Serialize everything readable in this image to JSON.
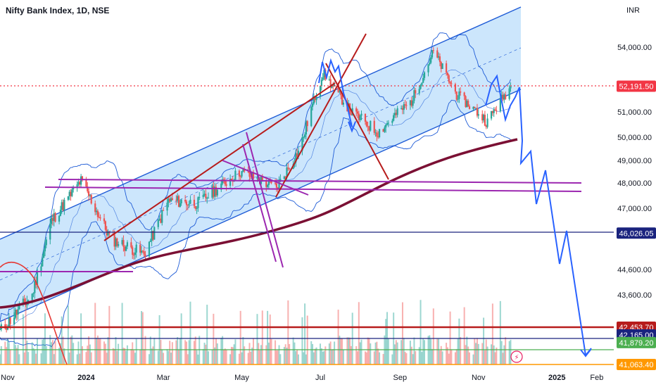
{
  "header": {
    "title": "Nifty Bank Index, 1D, NSE",
    "currency": "INR"
  },
  "colors": {
    "up": "#26a69a",
    "down": "#ef5350",
    "channel_fill": "#bbdefb",
    "channel_line": "#1e5bd6",
    "ma": "#7b1034",
    "purple": "#9c27b0",
    "crimson": "#b71c1c",
    "navy": "#1a237e",
    "forecast": "#2962ff",
    "price_line": "#f23645",
    "green_line": "#4caf50",
    "orange_line": "#ff9800"
  },
  "chart_data": {
    "type": "candlestick",
    "title": "Nifty Bank Index, 1D, NSE",
    "ylabel": "INR",
    "ylim": [
      41000,
      55200
    ],
    "grid": false,
    "x_tick_labels": [
      "Nov",
      "2024",
      "Mar",
      "May",
      "Jul",
      "Sep",
      "Nov",
      "2025",
      "Feb"
    ],
    "y_tick_labels": [
      "54,000.00",
      "51,000.00",
      "50,000.00",
      "49,000.00",
      "48,000.00",
      "47,000.00",
      "44,600.00",
      "43,600.00"
    ],
    "last_price": "52,191.50",
    "price_badges": [
      {
        "label": "52,191.50",
        "color": "#f23645"
      },
      {
        "label": "46,026.05",
        "color": "#1a237e"
      },
      {
        "label": "42,453.70",
        "color": "#b71c1c"
      },
      {
        "label": "42,165.00",
        "color": "#1a237e"
      },
      {
        "label": "41,879.20",
        "color": "#4caf50"
      },
      {
        "label": "41,063.40",
        "color": "#ff9800"
      }
    ],
    "price_path_approx": [
      {
        "date": "2023-10-26",
        "close": 42300
      },
      {
        "date": "2023-11-20",
        "close": 43600
      },
      {
        "date": "2023-12-05",
        "close": 46500
      },
      {
        "date": "2023-12-28",
        "close": 48100
      },
      {
        "date": "2024-01-20",
        "close": 45800
      },
      {
        "date": "2024-02-15",
        "close": 45200
      },
      {
        "date": "2024-03-05",
        "close": 47300
      },
      {
        "date": "2024-03-28",
        "close": 47200
      },
      {
        "date": "2024-04-30",
        "close": 48500
      },
      {
        "date": "2024-05-28",
        "close": 47800
      },
      {
        "date": "2024-06-15",
        "close": 49500
      },
      {
        "date": "2024-07-03",
        "close": 52800
      },
      {
        "date": "2024-07-25",
        "close": 51000
      },
      {
        "date": "2024-08-15",
        "close": 50200
      },
      {
        "date": "2024-09-10",
        "close": 51500
      },
      {
        "date": "2024-09-27",
        "close": 53800
      },
      {
        "date": "2024-10-15",
        "close": 51800
      },
      {
        "date": "2024-11-08",
        "close": 50600
      },
      {
        "date": "2024-11-26",
        "close": 52191
      }
    ],
    "moving_average_approx": [
      {
        "date": "2023-10-26",
        "value": 43200
      },
      {
        "date": "2024-01-01",
        "value": 44300
      },
      {
        "date": "2024-03-01",
        "value": 45100
      },
      {
        "date": "2024-05-01",
        "value": 45800
      },
      {
        "date": "2024-07-01",
        "value": 47700
      },
      {
        "date": "2024-09-01",
        "value": 49100
      },
      {
        "date": "2024-11-26",
        "value": 49900
      }
    ],
    "forecast_path_approx": [
      {
        "date": "2024-11-26",
        "value": 52191
      },
      {
        "date": "2024-12-01",
        "value": 48800
      },
      {
        "date": "2024-12-12",
        "value": 49000
      },
      {
        "date": "2024-12-18",
        "value": 47000
      },
      {
        "date": "2024-12-26",
        "value": 48400
      },
      {
        "date": "2025-01-01",
        "value": 46200
      },
      {
        "date": "2025-01-08",
        "value": 44500
      },
      {
        "date": "2025-01-15",
        "value": 46000
      },
      {
        "date": "2025-01-30",
        "value": 41500
      }
    ]
  }
}
